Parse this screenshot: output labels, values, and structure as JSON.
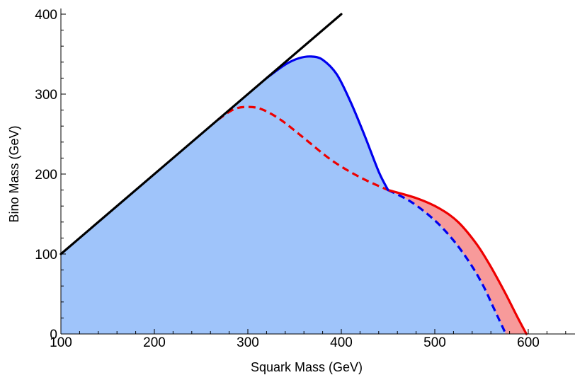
{
  "chart_data": {
    "type": "area",
    "title": "",
    "xlabel": "Squark Mass (GeV)",
    "ylabel": "Bino Mass (GeV)",
    "xlim": [
      100,
      650
    ],
    "ylim": [
      0,
      400
    ],
    "xticks": [
      100,
      200,
      300,
      400,
      500,
      600
    ],
    "yticks": [
      0,
      100,
      200,
      300,
      400
    ],
    "grid": false,
    "legend": "none",
    "series": [
      {
        "style": "black-solid",
        "color": "#000000",
        "x": [
          100,
          400
        ],
        "y": [
          100,
          400
        ]
      },
      {
        "style": "blue-solid",
        "color": "#0000ee",
        "x": [
          320,
          340,
          355,
          368,
          380,
          395,
          410,
          425,
          440,
          450
        ],
        "y": [
          320,
          337,
          345,
          347,
          343,
          325,
          290,
          248,
          203,
          180
        ]
      },
      {
        "style": "red-dashed",
        "color": "#ee0000",
        "x": [
          268,
          285,
          300,
          315,
          335,
          360,
          390,
          420,
          450
        ],
        "y": [
          268,
          281,
          284,
          281,
          268,
          245,
          217,
          196,
          180
        ]
      },
      {
        "style": "red-solid",
        "color": "#ee0000",
        "x": [
          450,
          480,
          505,
          525,
          545,
          560,
          575,
          588,
          598
        ],
        "y": [
          180,
          170,
          157,
          140,
          112,
          84,
          52,
          22,
          0
        ]
      },
      {
        "style": "blue-dashed",
        "color": "#0000ee",
        "x": [
          450,
          475,
          500,
          520,
          538,
          552,
          562,
          570,
          576
        ],
        "y": [
          180,
          165,
          142,
          117,
          88,
          60,
          35,
          15,
          0
        ]
      }
    ],
    "fills": {
      "blue_region": "#9fc4fa",
      "red_region": "#f79a9a"
    }
  }
}
